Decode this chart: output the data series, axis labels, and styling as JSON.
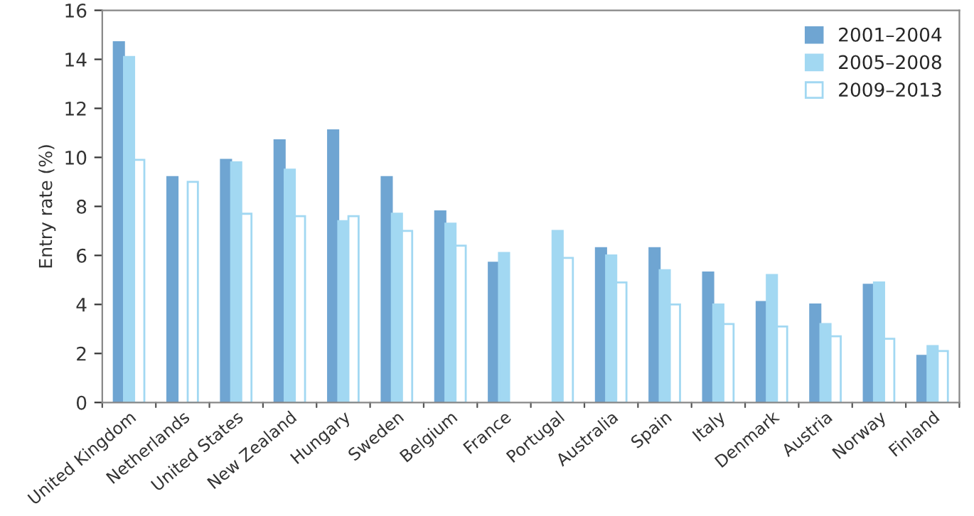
{
  "chart_data": {
    "type": "bar",
    "ylabel": "Entry rate (%)",
    "categories": [
      "United Kingdom",
      "Netherlands",
      "United States",
      "New Zealand",
      "Hungary",
      "Sweden",
      "Belgium",
      "France",
      "Portugal",
      "Australia",
      "Spain",
      "Italy",
      "Denmark",
      "Austria",
      "Norway",
      "Finland"
    ],
    "series": [
      {
        "name": "2001–2004",
        "color": "#6fa5d2",
        "values": [
          14.7,
          9.2,
          9.9,
          10.7,
          11.1,
          9.2,
          7.8,
          5.7,
          null,
          6.3,
          6.3,
          5.3,
          4.1,
          4.0,
          4.8,
          1.9
        ]
      },
      {
        "name": "2005–2008",
        "color": "#a2d8f2",
        "values": [
          14.1,
          null,
          9.8,
          9.5,
          7.4,
          7.7,
          7.3,
          6.1,
          7.0,
          6.0,
          5.4,
          4.0,
          5.2,
          3.2,
          4.9,
          2.3
        ]
      },
      {
        "name": "2009–2013",
        "color": "#ffffff",
        "values": [
          9.9,
          9.0,
          7.7,
          7.6,
          7.6,
          7.0,
          6.4,
          null,
          5.9,
          4.9,
          4.0,
          3.2,
          3.1,
          2.7,
          2.6,
          2.1
        ]
      }
    ],
    "ylim": [
      0,
      16
    ],
    "yticks": [
      0,
      2,
      4,
      6,
      8,
      10,
      12,
      14,
      16
    ],
    "grid": false,
    "legend": "top right"
  }
}
